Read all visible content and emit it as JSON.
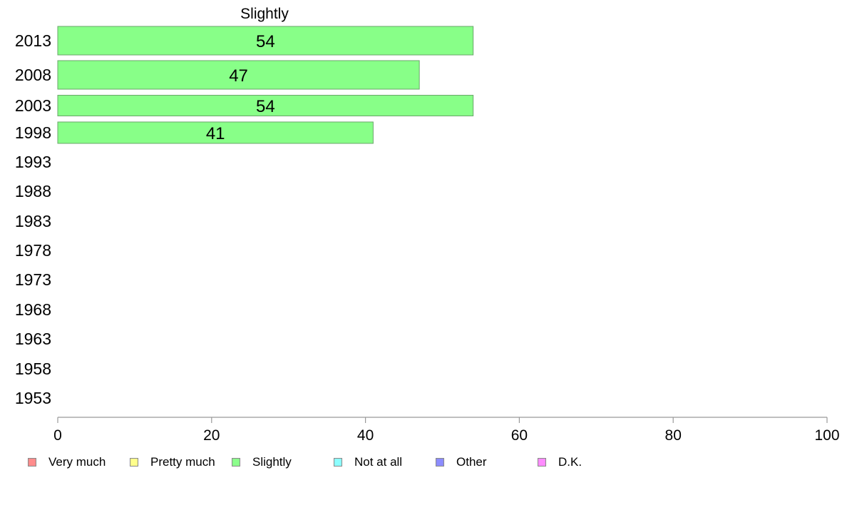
{
  "chart_data": {
    "type": "bar",
    "orientation": "horizontal",
    "title": "Slightly",
    "categories": [
      "2013",
      "2008",
      "2003",
      "1998",
      "1993",
      "1988",
      "1983",
      "1978",
      "1973",
      "1968",
      "1963",
      "1958",
      "1953"
    ],
    "series": [
      {
        "name": "Slightly",
        "values": [
          54,
          47,
          54,
          41,
          null,
          null,
          null,
          null,
          null,
          null,
          null,
          null,
          null
        ]
      }
    ],
    "xlim": [
      0,
      100
    ],
    "xticks": [
      0,
      20,
      40,
      60,
      80,
      100
    ],
    "grid": false,
    "legend_position": "bottom",
    "legend": [
      {
        "label": "Very much",
        "color": "#ff8c8c"
      },
      {
        "label": "Pretty much",
        "color": "#ffff8c"
      },
      {
        "label": "Slightly",
        "color": "#8cff8c"
      },
      {
        "label": "Not at all",
        "color": "#8cffff"
      },
      {
        "label": "Other",
        "color": "#8c8cff"
      },
      {
        "label": "D.K.",
        "color": "#ff8cff"
      }
    ],
    "bar_color": "#88ff88"
  }
}
